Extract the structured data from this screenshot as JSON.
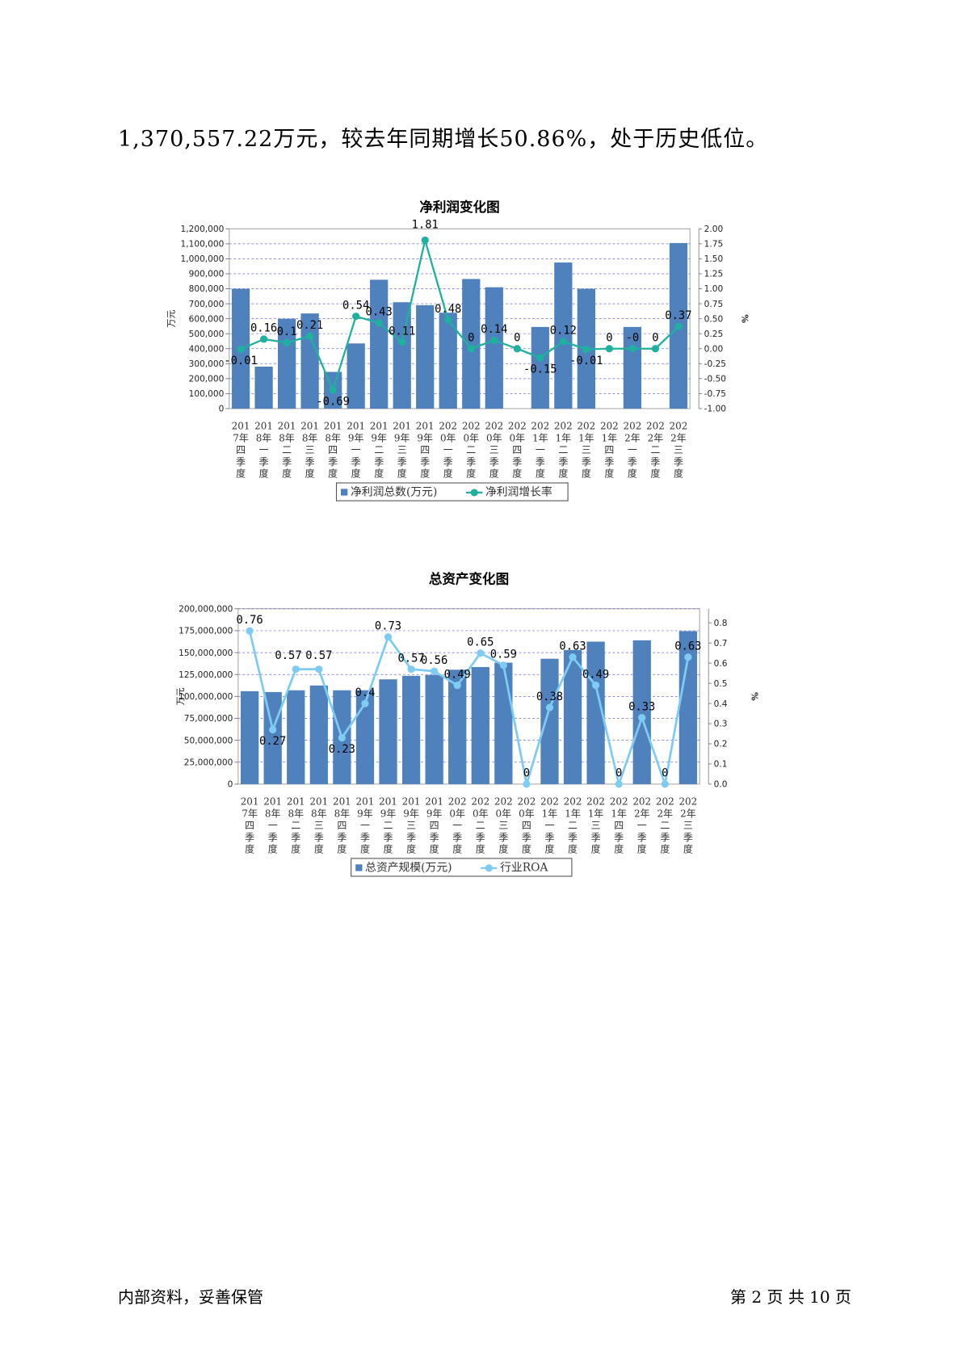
{
  "intro_text": "1,370,557.22万元，较去年同期增长50.86%，处于历史低位。",
  "footer": {
    "left": "内部资料，妥善保管",
    "right": "第 2 页  共 10 页"
  },
  "colors": {
    "bar": "#4f81bd",
    "line1": "#20b0a0",
    "line2": "#7ecbf4",
    "grid": "#6666dd"
  },
  "chart_data": [
    {
      "type": "bar",
      "title": "净利润变化图",
      "categories": [
        "2017年四季度",
        "2018年一季度",
        "2018年二季度",
        "2018年三季度",
        "2018年四季度",
        "2019年一季度",
        "2019年二季度",
        "2019年三季度",
        "2019年四季度",
        "2020年一季度",
        "2020年二季度",
        "2020年三季度",
        "2020年四季度",
        "2021年一季度",
        "2021年二季度",
        "2021年三季度",
        "2021年四季度",
        "2022年一季度",
        "2022年二季度",
        "2022年三季度"
      ],
      "series": [
        {
          "name": "净利润总数(万元)",
          "kind": "bar",
          "axis": "left",
          "values": [
            800000,
            280000,
            600000,
            635000,
            245000,
            435000,
            860000,
            710000,
            690000,
            640000,
            865000,
            810000,
            0,
            545000,
            975000,
            800000,
            0,
            545000,
            0,
            1105000
          ]
        },
        {
          "name": "净利润增长率",
          "kind": "line",
          "axis": "right",
          "values": [
            -0.01,
            0.16,
            0.1,
            0.21,
            -0.69,
            0.54,
            0.43,
            0.11,
            1.81,
            0.48,
            0,
            0.14,
            0,
            -0.15,
            0.12,
            -0.01,
            0,
            0,
            0,
            0.37
          ],
          "labels": [
            "-0.01",
            "0.16",
            "0.1",
            "0.21",
            "-0.69",
            "0.54",
            "0.43",
            "0.11",
            "1.81",
            "0.48",
            "0",
            "0.14",
            "0",
            "-0.15",
            "0.12",
            "-0.01",
            "0",
            "-0",
            "0",
            "0.37"
          ]
        }
      ],
      "ylabel": "万元",
      "ylabel_right": "%",
      "ylim": [
        0,
        1200000
      ],
      "yticks": [
        0,
        100000,
        200000,
        300000,
        400000,
        500000,
        600000,
        700000,
        800000,
        900000,
        1000000,
        1100000,
        1200000
      ],
      "ytick_labels": [
        "0",
        "100,000",
        "200,000",
        "300,000",
        "400,000",
        "500,000",
        "600,000",
        "700,000",
        "800,000",
        "900,000",
        "1,000,000",
        "1,100,000",
        "1,200,000"
      ],
      "ylim_right": [
        -1.0,
        2.0
      ],
      "yticks_right": [
        -1.0,
        -0.75,
        -0.5,
        -0.25,
        0,
        0.25,
        0.5,
        0.75,
        1.0,
        1.25,
        1.5,
        1.75,
        2.0
      ],
      "ytick_labels_right": [
        "-1.00",
        "-0.75",
        "-0.50",
        "-0.25",
        "0.00",
        "0.25",
        "0.50",
        "0.75",
        "1.00",
        "1.25",
        "1.50",
        "1.75",
        "2.00"
      ],
      "grid": true,
      "legend": "bottom"
    },
    {
      "type": "bar",
      "title": "总资产变化图",
      "categories": [
        "2017年四季度",
        "2018年一季度",
        "2018年二季度",
        "2018年三季度",
        "2018年四季度",
        "2019年一季度",
        "2019年二季度",
        "2019年三季度",
        "2019年四季度",
        "2020年一季度",
        "2020年二季度",
        "2020年三季度",
        "2020年四季度",
        "2021年一季度",
        "2021年二季度",
        "2021年三季度",
        "2021年四季度",
        "2022年一季度",
        "2022年二季度",
        "2022年三季度"
      ],
      "series": [
        {
          "name": "总资产规模(万元)",
          "kind": "bar",
          "axis": "left",
          "values": [
            106000000,
            105000000,
            107000000,
            112500000,
            107000000,
            107000000,
            119500000,
            123500000,
            124500000,
            130500000,
            133500000,
            138500000,
            0,
            143000000,
            153000000,
            162500000,
            0,
            164000000,
            0,
            174500000
          ]
        },
        {
          "name": "行业ROA",
          "kind": "line",
          "axis": "right",
          "values": [
            0.76,
            0.27,
            0.57,
            0.57,
            0.23,
            0.4,
            0.73,
            0.57,
            0.56,
            0.49,
            0.65,
            0.59,
            0,
            0.38,
            0.63,
            0.49,
            0,
            0.33,
            0,
            0.63
          ],
          "labels": [
            "0.76",
            "0.27",
            "0.57",
            "0.57",
            "0.23",
            "0.4",
            "0.73",
            "0.57",
            "0.56",
            "0.49",
            "0.65",
            "0.59",
            "0",
            "0.38",
            "0.63",
            "0.49",
            "0",
            "0.33",
            "0",
            "0.63"
          ]
        }
      ],
      "ylabel": "万元",
      "ylabel_right": "%",
      "ylim": [
        0,
        200000000
      ],
      "yticks": [
        0,
        25000000,
        50000000,
        75000000,
        100000000,
        125000000,
        150000000,
        175000000,
        200000000
      ],
      "ytick_labels": [
        "0",
        "25,000,000",
        "50,000,000",
        "75,000,000",
        "100,000,000",
        "125,000,000",
        "150,000,000",
        "175,000,000",
        "200,000,000"
      ],
      "ylim_right": [
        0,
        0.87
      ],
      "yticks_right": [
        0,
        0.1,
        0.2,
        0.3,
        0.4,
        0.5,
        0.6,
        0.7,
        0.8
      ],
      "ytick_labels_right": [
        "0.0",
        "0.1",
        "0.2",
        "0.3",
        "0.4",
        "0.5",
        "0.6",
        "0.7",
        "0.8"
      ],
      "grid": true,
      "legend": "bottom"
    }
  ]
}
